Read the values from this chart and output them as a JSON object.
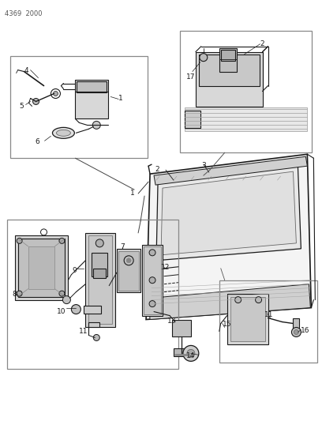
{
  "page_label": "4369  2000",
  "bg_color": "#ffffff",
  "lc": "#1a1a1a",
  "gc": "#888888",
  "fig_width": 4.08,
  "fig_height": 5.33,
  "dpi": 100
}
